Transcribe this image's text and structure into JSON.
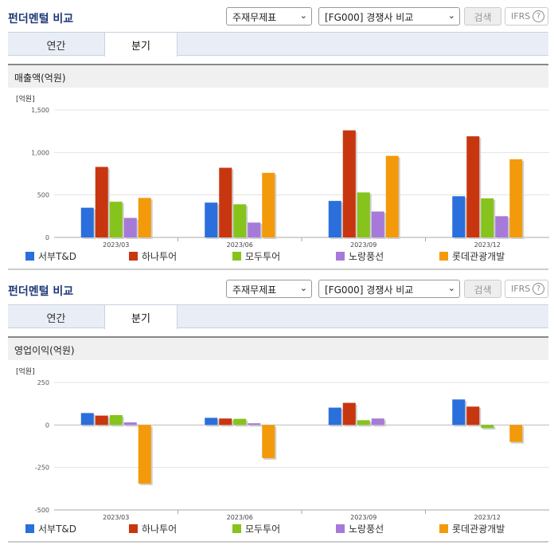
{
  "header": {
    "title": "펀더멘털 비교",
    "select_statement": "주재무제표",
    "select_peer": "[FG000] 경쟁사 비교",
    "search_label": "검색",
    "ifrs_label": "IFRS",
    "help_label": "?"
  },
  "tabs": {
    "annual": "연간",
    "quarterly": "분기"
  },
  "colors": {
    "서부T&D": "#2a6fdb",
    "하나투어": "#c8360f",
    "모두투어": "#86c31c",
    "노랑풍선": "#a67ad9",
    "롯데관광개발": "#f39a0b"
  },
  "chart_data": [
    {
      "type": "bar",
      "title": "매출액(억원)",
      "unit": "[억원]",
      "categories": [
        "2023/03",
        "2023/06",
        "2023/09",
        "2023/12"
      ],
      "ylim": [
        0,
        1500
      ],
      "yticks": [
        0,
        500,
        1000,
        1500
      ],
      "ytick_labels": [
        "0",
        "500",
        "1,000",
        "1,500"
      ],
      "series": [
        {
          "name": "서부T&D",
          "values": [
            350,
            410,
            430,
            485
          ]
        },
        {
          "name": "하나투어",
          "values": [
            830,
            820,
            1260,
            1190
          ]
        },
        {
          "name": "모두투어",
          "values": [
            420,
            390,
            530,
            460
          ]
        },
        {
          "name": "노랑풍선",
          "values": [
            230,
            175,
            305,
            250
          ]
        },
        {
          "name": "롯데관광개발",
          "values": [
            465,
            760,
            960,
            920
          ]
        }
      ]
    },
    {
      "type": "bar",
      "title": "영업이익(억원)",
      "unit": "[억원]",
      "categories": [
        "2023/03",
        "2023/06",
        "2023/09",
        "2023/12"
      ],
      "ylim": [
        -500,
        250
      ],
      "yticks": [
        -500,
        -250,
        0,
        250
      ],
      "ytick_labels": [
        "-500",
        "-250",
        "0",
        "250"
      ],
      "series": [
        {
          "name": "서부T&D",
          "values": [
            70,
            42,
            102,
            150
          ]
        },
        {
          "name": "하나투어",
          "values": [
            55,
            38,
            130,
            108
          ]
        },
        {
          "name": "모두투어",
          "values": [
            58,
            36,
            28,
            -18
          ]
        },
        {
          "name": "노랑풍선",
          "values": [
            15,
            10,
            38,
            0
          ]
        },
        {
          "name": "롯데관광개발",
          "values": [
            -345,
            -195,
            0,
            -100
          ]
        }
      ]
    }
  ]
}
